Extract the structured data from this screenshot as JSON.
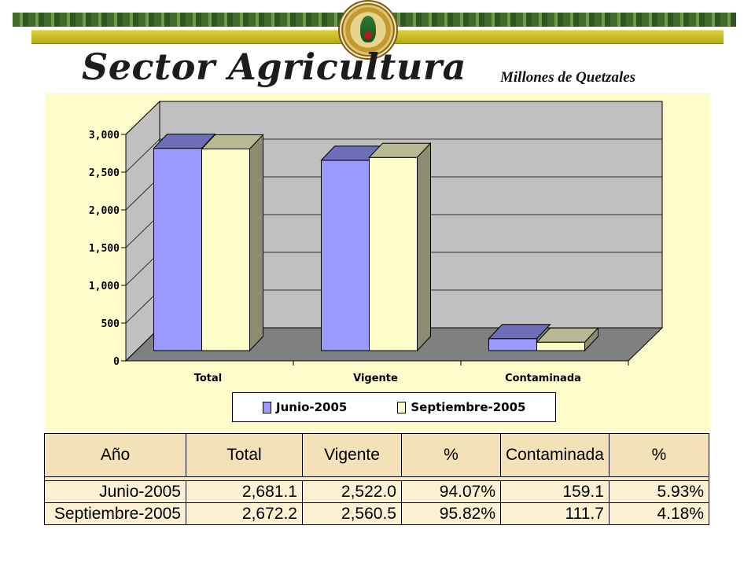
{
  "header": {
    "title": "Sector Agricultura",
    "unit": "Millones de Quetzales",
    "seal_icon": "superintendencia-de-bancos-seal"
  },
  "chart_data": {
    "type": "bar",
    "categories": [
      "Total",
      "Vigente",
      "Contaminada"
    ],
    "series": [
      {
        "name": "Junio-2005",
        "values": [
          2681.1,
          2522.0,
          159.1
        ],
        "color": "#9999ff"
      },
      {
        "name": "Septiembre-2005",
        "values": [
          2672.2,
          2560.5,
          111.7
        ],
        "color": "#ffffcc"
      }
    ],
    "yticks": [
      "0",
      "500",
      "1,000",
      "1,500",
      "2,000",
      "2,500",
      "3,000"
    ],
    "ylim": [
      0,
      3000
    ],
    "grid": true,
    "legend_position": "bottom",
    "plot_background": "#c0c0c0",
    "floor_color": "#808080"
  },
  "table": {
    "headers": [
      "Año",
      "Total",
      "Vigente",
      "%",
      "Contaminada",
      "%"
    ],
    "rows": [
      [
        "Junio-2005",
        "2,681.1",
        "2,522.0",
        "94.07%",
        "159.1",
        "5.93%"
      ],
      [
        "Septiembre-2005",
        "2,672.2",
        "2,560.5",
        "95.82%",
        "111.7",
        "4.18%"
      ]
    ]
  }
}
